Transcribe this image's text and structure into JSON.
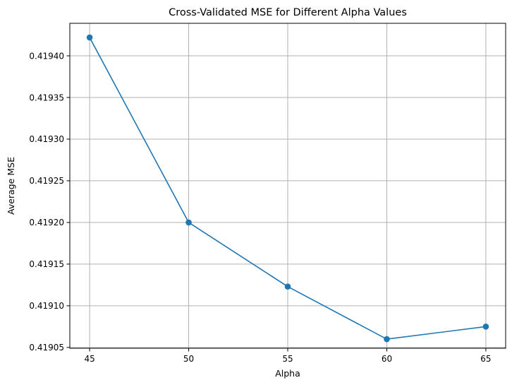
{
  "chart_data": {
    "type": "line",
    "title": "Cross-Validated MSE for Different Alpha Values",
    "xlabel": "Alpha",
    "ylabel": "Average MSE",
    "x": [
      45,
      50,
      55,
      60,
      65
    ],
    "series": [
      {
        "values": [
          0.419422,
          0.4192,
          0.419123,
          0.41906,
          0.419075
        ],
        "color": "#1f77b4",
        "marker": "circle"
      }
    ],
    "xlim": [
      44.0,
      66.0
    ],
    "ylim": [
      0.419049,
      0.419439
    ],
    "xticks": [
      45,
      50,
      55,
      60,
      65
    ],
    "xtick_labels": [
      "45",
      "50",
      "55",
      "60",
      "65"
    ],
    "yticks": [
      0.41905,
      0.4191,
      0.41915,
      0.4192,
      0.41925,
      0.4193,
      0.41935,
      0.4194
    ],
    "ytick_labels": [
      "0.41905",
      "0.41910",
      "0.41915",
      "0.41920",
      "0.41925",
      "0.41930",
      "0.41935",
      "0.41940"
    ],
    "grid": true,
    "legend": false
  }
}
